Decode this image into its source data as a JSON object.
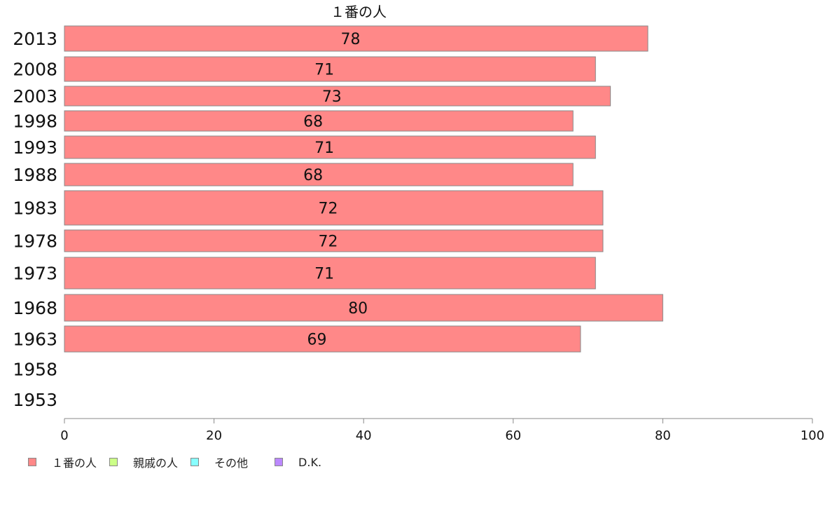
{
  "chart_data": {
    "type": "bar",
    "orientation": "horizontal",
    "title": "",
    "xlabel": "",
    "ylabel": "",
    "xlim": [
      0,
      100
    ],
    "x_ticks": [
      "0",
      "20",
      "40",
      "60",
      "80",
      "100"
    ],
    "grid": false,
    "legend_position": "bottom-left",
    "categories": [
      "2013",
      "2008",
      "2003",
      "1998",
      "1993",
      "1988",
      "1983",
      "1978",
      "1973",
      "1968",
      "1963",
      "1958",
      "1953"
    ],
    "series": [
      {
        "name": "１番の人",
        "color": "#ff8888",
        "values": [
          78,
          71,
          73,
          68,
          71,
          68,
          72,
          72,
          71,
          80,
          69,
          null,
          null
        ],
        "labels": [
          "78",
          "71",
          "73",
          "68",
          "71",
          "68",
          "72",
          "72",
          "71",
          "80",
          "69",
          "",
          ""
        ]
      }
    ],
    "header_label": "１番の人",
    "legend": [
      {
        "label": "１番の人",
        "color": "#ff8888"
      },
      {
        "label": "親戚の人",
        "color": "#ccff88"
      },
      {
        "label": "その他",
        "color": "#88ffff"
      },
      {
        "label": "D.K.",
        "color": "#bb88ff"
      }
    ]
  }
}
